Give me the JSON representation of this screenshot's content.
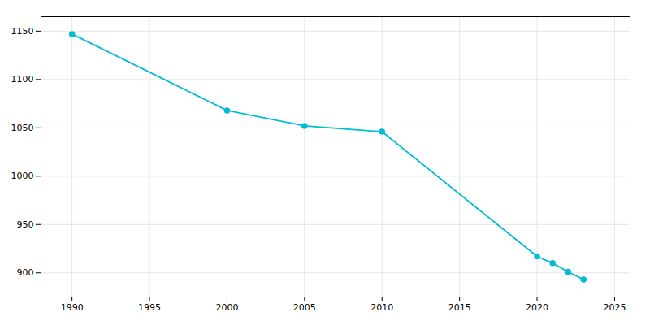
{
  "chart_data": {
    "type": "line",
    "x": [
      1990,
      2000,
      2005,
      2010,
      2020,
      2021,
      2022,
      2023
    ],
    "values": [
      1147,
      1068,
      1052,
      1046,
      917,
      910,
      901,
      893
    ],
    "color": "#00BCD4",
    "marker": "circle",
    "xlim": [
      1988,
      2026
    ],
    "ylim": [
      875,
      1165
    ],
    "xticks": [
      1990,
      1995,
      2000,
      2005,
      2010,
      2015,
      2020,
      2025
    ],
    "yticks": [
      900,
      950,
      1000,
      1050,
      1100,
      1150
    ],
    "grid": true
  }
}
